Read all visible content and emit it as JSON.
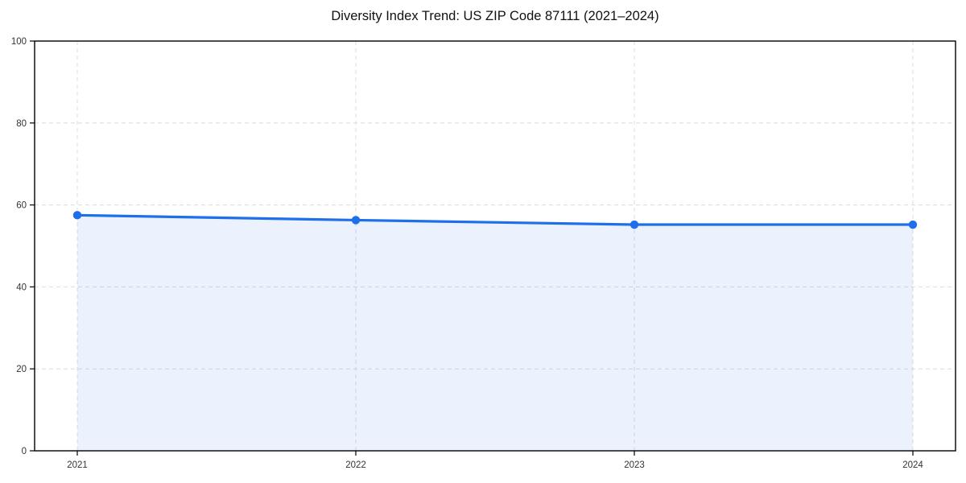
{
  "chart": {
    "title": "Diversity Index Trend: US ZIP Code 87111 (2021–2024)"
  },
  "chart_data": {
    "type": "area",
    "title": "Diversity Index Trend: US ZIP Code 87111 (2021–2024)",
    "x": [
      2021,
      2022,
      2023,
      2024
    ],
    "xticklabels": [
      "2021",
      "2022",
      "2023",
      "2024"
    ],
    "series": [
      {
        "name": "Diversity Index",
        "values": [
          57.5,
          56.3,
          55.2,
          55.2
        ]
      }
    ],
    "xlabel": "",
    "ylabel": "",
    "ylim": [
      0,
      100
    ],
    "yticks": [
      0,
      20,
      40,
      60,
      80,
      100
    ],
    "grid": true,
    "grid_style": "dashed",
    "legend": "none",
    "marker": "circle",
    "colors": {
      "line": "#1f6feb",
      "marker": "#1f6feb",
      "fill": "#1f6feb",
      "fill_opacity": 0.09,
      "grid": "#dcdcdc",
      "axis": "#000000",
      "tick_label": "#333333",
      "title": "#111111",
      "background": "#ffffff"
    }
  }
}
